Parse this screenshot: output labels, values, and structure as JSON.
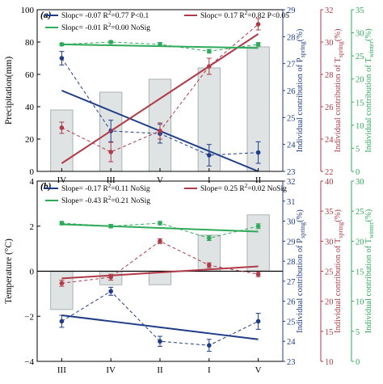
{
  "chart_data": [
    {
      "panel_label": "(a)",
      "type": "bar+line",
      "categories": [
        "IV",
        "III",
        "V",
        "I",
        "II"
      ],
      "bars": {
        "name": "Precipitation(mm)",
        "values": [
          38,
          49,
          57,
          64,
          77
        ]
      },
      "y_left": {
        "label": "Precipitation(mm)",
        "ylim": [
          0,
          100
        ],
        "ticks": [
          0,
          20,
          40,
          60,
          80,
          100
        ]
      },
      "y_axes_right": [
        {
          "label": "Individual contribution of P_spring(%)",
          "ylim": [
            23,
            29
          ],
          "ticks": [
            23,
            24,
            25,
            26,
            27,
            28,
            29
          ],
          "color": "#1f3c88"
        },
        {
          "label": "Individual contribution of T_spring(%)",
          "ylim": [
            22,
            32
          ],
          "ticks": [
            22,
            24,
            26,
            28,
            30,
            32
          ],
          "color": "#b03a48"
        },
        {
          "label": "Individual contribution of T_winter(%)",
          "ylim": [
            0,
            35
          ],
          "ticks": [
            0,
            5,
            10,
            15,
            20,
            25,
            30,
            35
          ],
          "color": "#2eaa5a"
        }
      ],
      "series": [
        {
          "axis": 0,
          "color": "#1f3c88",
          "values": [
            27.2,
            24.5,
            24.4,
            23.6,
            23.7
          ],
          "errors": [
            0.25,
            0.4,
            0.35,
            0.4,
            0.4
          ],
          "trend": [
            26.0,
            25.25,
            24.5,
            23.75,
            23.0
          ],
          "legend": "Slopc= -0.07 R²=0.77 P<0.1"
        },
        {
          "axis": 1,
          "color": "#b03a48",
          "values": [
            24.7,
            23.2,
            24.5,
            28.5,
            31.1
          ],
          "errors": [
            0.35,
            0.6,
            0.5,
            0.5,
            0.35
          ],
          "trend": [
            22.5,
            24.5,
            26.5,
            28.5,
            30.5
          ],
          "legend": "Slopc= 0.17 R²=0.82 P<0.05"
        },
        {
          "axis": 2,
          "color": "#2eaa5a",
          "values": [
            27.5,
            28.0,
            27.5,
            26.0,
            27.5
          ],
          "errors": [
            0.3,
            0.3,
            0.4,
            0.4,
            0.4
          ],
          "trend": [
            27.5,
            27.3,
            27.1,
            26.9,
            26.7
          ],
          "legend": "Slopc= -0.01 R²=0.00 NoSig"
        }
      ]
    },
    {
      "panel_label": "(b)",
      "type": "bar+line",
      "categories": [
        "III",
        "IV",
        "II",
        "I",
        "V"
      ],
      "bars": {
        "name": "Temperature (°C)",
        "values": [
          -1.7,
          -0.6,
          -0.6,
          1.6,
          2.5
        ]
      },
      "y_left": {
        "label": "Temperature (°C)",
        "ylim": [
          -4,
          4
        ],
        "ticks": [
          -4,
          -2,
          0,
          2,
          4
        ]
      },
      "y_axes_right": [
        {
          "label": "Individual contribution of P_spring(%)",
          "ylim": [
            23,
            32
          ],
          "ticks": [
            23,
            24,
            25,
            26,
            27,
            28,
            29,
            30,
            31,
            32
          ],
          "color": "#1f3c88"
        },
        {
          "label": "Individual contribution of T_spring(%)",
          "ylim": [
            10,
            40
          ],
          "ticks": [
            10,
            15,
            20,
            25,
            30,
            35,
            40
          ],
          "color": "#b03a48"
        },
        {
          "label": "Individual contribution of T_winter(%)",
          "ylim": [
            0,
            30
          ],
          "ticks": [
            0,
            5,
            10,
            15,
            20,
            25,
            30
          ],
          "color": "#2eaa5a"
        }
      ],
      "series": [
        {
          "axis": 0,
          "color": "#1f3c88",
          "values": [
            25.0,
            26.5,
            24.0,
            23.8,
            25.0
          ],
          "errors": [
            0.3,
            0.2,
            0.25,
            0.3,
            0.4
          ],
          "trend": [
            25.3,
            25.0,
            24.7,
            24.4,
            24.1
          ],
          "legend": "Slope= -0.17 R²=0.11 NoSig"
        },
        {
          "axis": 1,
          "color": "#b03a48",
          "values": [
            23.0,
            24.0,
            30.0,
            26.0,
            24.5
          ],
          "errors": [
            0.5,
            0.5,
            0.4,
            0.4,
            0.4
          ],
          "trend": [
            23.8,
            24.3,
            24.8,
            25.3,
            25.8
          ],
          "legend": "Slope= 0.25 R²=0.02 NoSig"
        },
        {
          "axis": 2,
          "color": "#2eaa5a",
          "values": [
            23.0,
            22.5,
            23.0,
            20.5,
            22.5
          ],
          "errors": [
            0.3,
            0.3,
            0.3,
            0.4,
            0.4
          ],
          "trend": [
            22.8,
            22.5,
            22.2,
            21.9,
            21.6
          ],
          "legend": "Slope= -0.43 R²=0.21 NoSig"
        }
      ]
    }
  ]
}
